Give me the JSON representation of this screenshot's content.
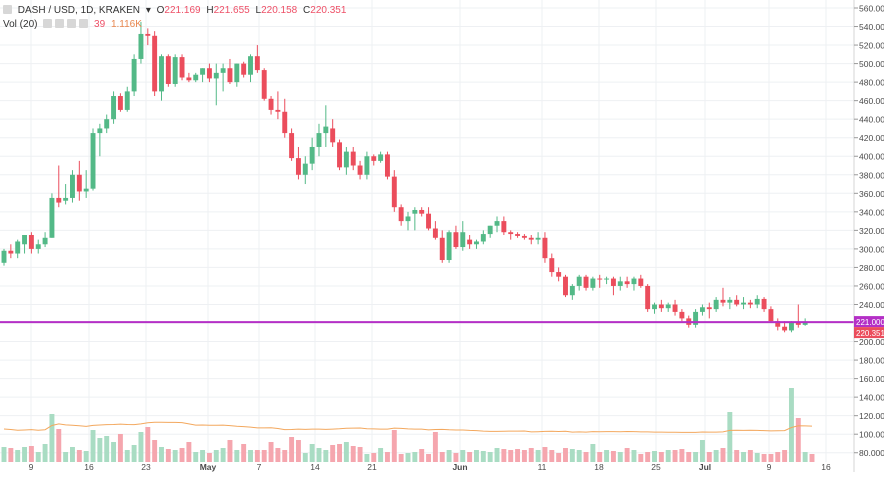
{
  "legend": {
    "symbol": "DASH / USD, 1D, KRAKEN",
    "caret": "▾",
    "o_label": "O",
    "o_value": "221.169",
    "h_label": "H",
    "h_value": "221.655",
    "l_label": "L",
    "l_value": "220.158",
    "c_label": "C",
    "c_value": "220.351",
    "vol_label": "Vol (20)",
    "vol_value": "39",
    "vol_ma_value": "1.116K"
  },
  "colors": {
    "up": "#53b987",
    "down": "#eb4d5c",
    "vol_up": "#a9dcc3",
    "vol_down": "#f5a6ae",
    "hline": "#b42fc6",
    "ma": "#f3a85e",
    "grid": "#eef0f3",
    "axis_text": "#4a4a4a"
  },
  "chart_data": {
    "type": "candlestick",
    "title": "DASH / USD, 1D, KRAKEN",
    "y_ticks": [
      "560.000",
      "540.000",
      "520.000",
      "500.000",
      "480.000",
      "460.000",
      "440.000",
      "420.000",
      "400.000",
      "380.000",
      "360.000",
      "340.000",
      "320.000",
      "300.000",
      "280.000",
      "260.000",
      "240.000",
      "220.000",
      "200.000",
      "180.000",
      "160.000",
      "140.000",
      "120.000",
      "100.000",
      "80.000"
    ],
    "x_ticks": [
      "9",
      "16",
      "23",
      "May",
      "7",
      "14",
      "21",
      "Jun",
      "11",
      "18",
      "25",
      "Jul",
      "9",
      "16"
    ],
    "price_labels": [
      "221.000",
      "220.351"
    ],
    "hline_value": 221,
    "last_close": 220.351,
    "candles": [
      {
        "o": 285,
        "h": 300,
        "l": 282,
        "c": 298
      },
      {
        "o": 298,
        "h": 305,
        "l": 290,
        "c": 295
      },
      {
        "o": 295,
        "h": 310,
        "l": 290,
        "c": 308
      },
      {
        "o": 305,
        "h": 315,
        "l": 295,
        "c": 315
      },
      {
        "o": 315,
        "h": 318,
        "l": 295,
        "c": 300
      },
      {
        "o": 300,
        "h": 310,
        "l": 295,
        "c": 305
      },
      {
        "o": 305,
        "h": 318,
        "l": 302,
        "c": 312
      },
      {
        "o": 312,
        "h": 360,
        "l": 312,
        "c": 355
      },
      {
        "o": 355,
        "h": 390,
        "l": 345,
        "c": 350
      },
      {
        "o": 352,
        "h": 370,
        "l": 348,
        "c": 355
      },
      {
        "o": 355,
        "h": 385,
        "l": 350,
        "c": 380
      },
      {
        "o": 380,
        "h": 395,
        "l": 352,
        "c": 362
      },
      {
        "o": 362,
        "h": 385,
        "l": 355,
        "c": 365
      },
      {
        "o": 365,
        "h": 430,
        "l": 363,
        "c": 425
      },
      {
        "o": 425,
        "h": 435,
        "l": 400,
        "c": 430
      },
      {
        "o": 430,
        "h": 445,
        "l": 425,
        "c": 440
      },
      {
        "o": 440,
        "h": 470,
        "l": 435,
        "c": 465
      },
      {
        "o": 465,
        "h": 468,
        "l": 448,
        "c": 450
      },
      {
        "o": 450,
        "h": 475,
        "l": 448,
        "c": 470
      },
      {
        "o": 470,
        "h": 510,
        "l": 465,
        "c": 505
      },
      {
        "o": 505,
        "h": 545,
        "l": 500,
        "c": 532
      },
      {
        "o": 532,
        "h": 538,
        "l": 520,
        "c": 530
      },
      {
        "o": 530,
        "h": 535,
        "l": 465,
        "c": 470
      },
      {
        "o": 470,
        "h": 510,
        "l": 460,
        "c": 508
      },
      {
        "o": 508,
        "h": 510,
        "l": 475,
        "c": 478
      },
      {
        "o": 478,
        "h": 510,
        "l": 475,
        "c": 507
      },
      {
        "o": 507,
        "h": 510,
        "l": 482,
        "c": 485
      },
      {
        "o": 485,
        "h": 490,
        "l": 480,
        "c": 482
      },
      {
        "o": 482,
        "h": 490,
        "l": 480,
        "c": 488
      },
      {
        "o": 488,
        "h": 495,
        "l": 480,
        "c": 495
      },
      {
        "o": 495,
        "h": 500,
        "l": 480,
        "c": 484
      },
      {
        "o": 484,
        "h": 500,
        "l": 455,
        "c": 490
      },
      {
        "o": 490,
        "h": 500,
        "l": 470,
        "c": 495
      },
      {
        "o": 495,
        "h": 505,
        "l": 478,
        "c": 480
      },
      {
        "o": 480,
        "h": 500,
        "l": 475,
        "c": 500
      },
      {
        "o": 500,
        "h": 502,
        "l": 485,
        "c": 488
      },
      {
        "o": 488,
        "h": 510,
        "l": 480,
        "c": 508
      },
      {
        "o": 508,
        "h": 520,
        "l": 490,
        "c": 493
      },
      {
        "o": 493,
        "h": 495,
        "l": 460,
        "c": 462
      },
      {
        "o": 462,
        "h": 465,
        "l": 445,
        "c": 450
      },
      {
        "o": 450,
        "h": 470,
        "l": 440,
        "c": 448
      },
      {
        "o": 448,
        "h": 462,
        "l": 420,
        "c": 425
      },
      {
        "o": 425,
        "h": 430,
        "l": 395,
        "c": 398
      },
      {
        "o": 398,
        "h": 410,
        "l": 375,
        "c": 380
      },
      {
        "o": 380,
        "h": 400,
        "l": 370,
        "c": 392
      },
      {
        "o": 392,
        "h": 420,
        "l": 385,
        "c": 410
      },
      {
        "o": 410,
        "h": 435,
        "l": 400,
        "c": 425
      },
      {
        "o": 425,
        "h": 455,
        "l": 410,
        "c": 432
      },
      {
        "o": 430,
        "h": 440,
        "l": 410,
        "c": 415
      },
      {
        "o": 415,
        "h": 418,
        "l": 385,
        "c": 388
      },
      {
        "o": 388,
        "h": 410,
        "l": 380,
        "c": 405
      },
      {
        "o": 405,
        "h": 410,
        "l": 385,
        "c": 390
      },
      {
        "o": 390,
        "h": 395,
        "l": 375,
        "c": 380
      },
      {
        "o": 380,
        "h": 405,
        "l": 375,
        "c": 400
      },
      {
        "o": 400,
        "h": 402,
        "l": 390,
        "c": 395
      },
      {
        "o": 395,
        "h": 405,
        "l": 393,
        "c": 402
      },
      {
        "o": 402,
        "h": 405,
        "l": 375,
        "c": 378
      },
      {
        "o": 378,
        "h": 385,
        "l": 340,
        "c": 345
      },
      {
        "o": 345,
        "h": 348,
        "l": 325,
        "c": 330
      },
      {
        "o": 330,
        "h": 340,
        "l": 320,
        "c": 335
      },
      {
        "o": 338,
        "h": 345,
        "l": 320,
        "c": 342
      },
      {
        "o": 342,
        "h": 345,
        "l": 335,
        "c": 338
      },
      {
        "o": 338,
        "h": 345,
        "l": 320,
        "c": 322
      },
      {
        "o": 322,
        "h": 330,
        "l": 310,
        "c": 312
      },
      {
        "o": 312,
        "h": 320,
        "l": 285,
        "c": 288
      },
      {
        "o": 288,
        "h": 320,
        "l": 285,
        "c": 318
      },
      {
        "o": 318,
        "h": 325,
        "l": 300,
        "c": 302
      },
      {
        "o": 302,
        "h": 330,
        "l": 298,
        "c": 318
      },
      {
        "o": 310,
        "h": 315,
        "l": 300,
        "c": 305
      },
      {
        "o": 305,
        "h": 310,
        "l": 300,
        "c": 308
      },
      {
        "o": 308,
        "h": 320,
        "l": 305,
        "c": 316
      },
      {
        "o": 316,
        "h": 325,
        "l": 312,
        "c": 325
      },
      {
        "o": 325,
        "h": 335,
        "l": 318,
        "c": 330
      },
      {
        "o": 330,
        "h": 335,
        "l": 315,
        "c": 318
      },
      {
        "o": 318,
        "h": 320,
        "l": 310,
        "c": 316
      },
      {
        "o": 316,
        "h": 318,
        "l": 312,
        "c": 314
      },
      {
        "o": 314,
        "h": 316,
        "l": 310,
        "c": 312
      },
      {
        "o": 312,
        "h": 315,
        "l": 305,
        "c": 310
      },
      {
        "o": 310,
        "h": 318,
        "l": 305,
        "c": 312
      },
      {
        "o": 312,
        "h": 318,
        "l": 285,
        "c": 290
      },
      {
        "o": 290,
        "h": 295,
        "l": 270,
        "c": 275
      },
      {
        "o": 275,
        "h": 280,
        "l": 265,
        "c": 270
      },
      {
        "o": 270,
        "h": 272,
        "l": 248,
        "c": 250
      },
      {
        "o": 250,
        "h": 262,
        "l": 245,
        "c": 260
      },
      {
        "o": 260,
        "h": 272,
        "l": 255,
        "c": 270
      },
      {
        "o": 270,
        "h": 272,
        "l": 255,
        "c": 258
      },
      {
        "o": 258,
        "h": 270,
        "l": 255,
        "c": 268
      },
      {
        "o": 268,
        "h": 272,
        "l": 258,
        "c": 267
      },
      {
        "o": 267,
        "h": 270,
        "l": 262,
        "c": 268
      },
      {
        "o": 268,
        "h": 270,
        "l": 250,
        "c": 260
      },
      {
        "o": 260,
        "h": 270,
        "l": 255,
        "c": 265
      },
      {
        "o": 265,
        "h": 270,
        "l": 258,
        "c": 262
      },
      {
        "o": 262,
        "h": 270,
        "l": 255,
        "c": 268
      },
      {
        "o": 268,
        "h": 272,
        "l": 258,
        "c": 260
      },
      {
        "o": 260,
        "h": 262,
        "l": 232,
        "c": 235
      },
      {
        "o": 235,
        "h": 242,
        "l": 230,
        "c": 240
      },
      {
        "o": 240,
        "h": 245,
        "l": 232,
        "c": 236
      },
      {
        "o": 236,
        "h": 242,
        "l": 232,
        "c": 240
      },
      {
        "o": 240,
        "h": 245,
        "l": 228,
        "c": 232
      },
      {
        "o": 232,
        "h": 235,
        "l": 222,
        "c": 225
      },
      {
        "o": 225,
        "h": 228,
        "l": 215,
        "c": 218
      },
      {
        "o": 218,
        "h": 235,
        "l": 215,
        "c": 232
      },
      {
        "o": 232,
        "h": 240,
        "l": 228,
        "c": 237
      },
      {
        "o": 237,
        "h": 242,
        "l": 225,
        "c": 235
      },
      {
        "o": 235,
        "h": 248,
        "l": 232,
        "c": 245
      },
      {
        "o": 245,
        "h": 258,
        "l": 238,
        "c": 242
      },
      {
        "o": 242,
        "h": 248,
        "l": 235,
        "c": 245
      },
      {
        "o": 245,
        "h": 250,
        "l": 238,
        "c": 240
      },
      {
        "o": 240,
        "h": 248,
        "l": 235,
        "c": 242
      },
      {
        "o": 242,
        "h": 245,
        "l": 236,
        "c": 240
      },
      {
        "o": 240,
        "h": 250,
        "l": 236,
        "c": 246
      },
      {
        "o": 246,
        "h": 248,
        "l": 232,
        "c": 235
      },
      {
        "o": 235,
        "h": 238,
        "l": 220,
        "c": 222
      },
      {
        "o": 222,
        "h": 225,
        "l": 212,
        "c": 216
      },
      {
        "o": 216,
        "h": 222,
        "l": 210,
        "c": 212
      },
      {
        "o": 212,
        "h": 222,
        "l": 210,
        "c": 220
      },
      {
        "o": 220,
        "h": 240,
        "l": 215,
        "c": 218
      },
      {
        "o": 218,
        "h": 225,
        "l": 217,
        "c": 221
      },
      {
        "o": 221.169,
        "h": 221.655,
        "l": 220.158,
        "c": 220.351
      }
    ],
    "volumes": [
      15,
      14,
      12,
      15,
      16,
      10,
      18,
      48,
      33,
      10,
      15,
      12,
      11,
      32,
      24,
      26,
      20,
      28,
      12,
      17,
      30,
      35,
      22,
      15,
      13,
      12,
      14,
      20,
      10,
      12,
      9,
      12,
      14,
      22,
      12,
      18,
      12,
      12,
      12,
      20,
      14,
      12,
      25,
      22,
      9,
      18,
      14,
      12,
      17,
      18,
      20,
      16,
      15,
      8,
      9,
      14,
      10,
      32,
      8,
      9,
      10,
      13,
      8,
      30,
      10,
      12,
      9,
      12,
      10,
      12,
      11,
      10,
      14,
      13,
      12,
      13,
      12,
      14,
      12,
      15,
      12,
      9,
      14,
      13,
      12,
      10,
      18,
      10,
      12,
      11,
      10,
      14,
      12,
      8,
      10,
      11,
      10,
      12,
      12,
      13,
      10,
      10,
      22,
      10,
      12,
      14,
      50,
      12,
      10,
      12,
      9,
      8,
      8,
      10,
      12,
      74,
      44,
      10,
      8
    ]
  }
}
